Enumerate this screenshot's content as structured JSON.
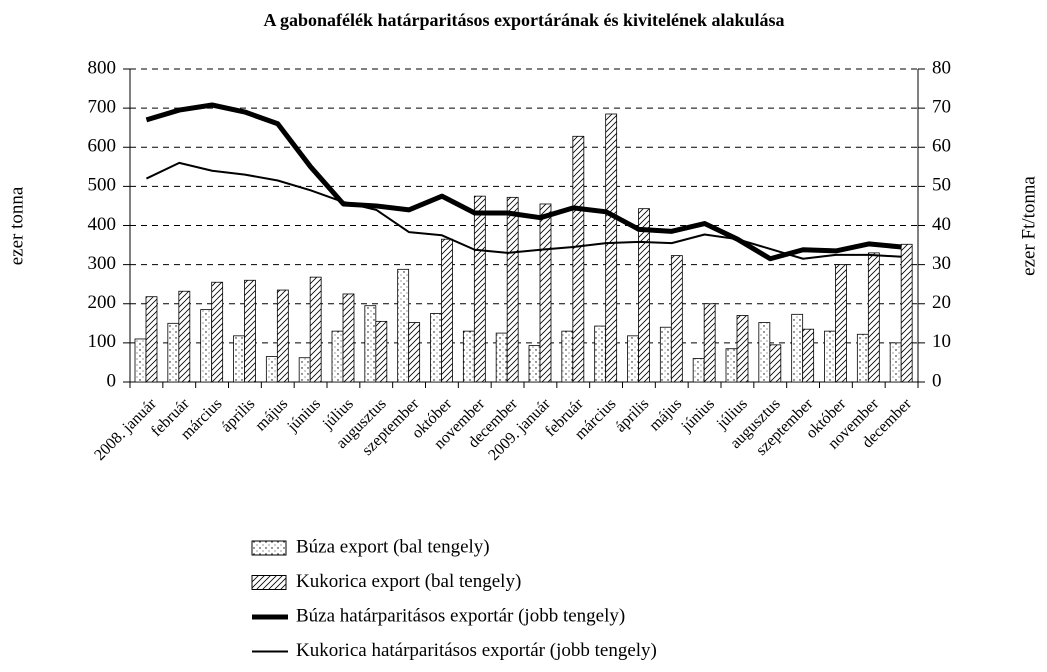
{
  "chart_data": {
    "type": "bar",
    "title": "A gabonafélék határparitásos exportárának és kivitelének alakulása",
    "ylabel": "ezer tonna",
    "y2label": "ezer Ft/tonna",
    "categories": [
      "2008. január",
      "február",
      "március",
      "április",
      "május",
      "június",
      "július",
      "augusztus",
      "szeptember",
      "október",
      "november",
      "december",
      "2009. január",
      "február",
      "március",
      "április",
      "május",
      "június",
      "július",
      "augusztus",
      "szeptember",
      "október",
      "november",
      "december"
    ],
    "series": [
      {
        "name": "Búza export (bal tengely)",
        "type": "bar",
        "pattern": "dots",
        "color": "#000000",
        "values": [
          110,
          150,
          185,
          118,
          65,
          62,
          130,
          195,
          288,
          175,
          130,
          125,
          93,
          130,
          143,
          118,
          140,
          60,
          85,
          152,
          173,
          130,
          122,
          100
        ]
      },
      {
        "name": "Kukorica export (bal tengely)",
        "type": "bar",
        "pattern": "hatch",
        "color": "#000000",
        "values": [
          218,
          232,
          255,
          260,
          235,
          268,
          225,
          155,
          152,
          365,
          475,
          472,
          455,
          628,
          685,
          443,
          323,
          200,
          170,
          95,
          135,
          300,
          330,
          352
        ]
      },
      {
        "name": "Búza határparitásos exportár (jobb tengely)",
        "type": "line",
        "axis": "y2",
        "width": 5,
        "color": "#000000",
        "values": [
          67,
          69.5,
          70.8,
          69,
          66,
          55,
          45.5,
          45,
          44,
          47.5,
          43.2,
          43.2,
          42,
          44.5,
          43.5,
          39,
          38.5,
          40.5,
          36.5,
          31.5,
          33.8,
          33.5,
          35.3,
          34.5
        ]
      },
      {
        "name": "Kukorica határparitásos exportár (jobb tengely)",
        "type": "line",
        "axis": "y2",
        "width": 2,
        "color": "#000000",
        "values": [
          52,
          56,
          54,
          53,
          51.5,
          49,
          46,
          44,
          38.3,
          37.5,
          33.8,
          33,
          33.8,
          34.5,
          35.5,
          35.8,
          35.5,
          37.7,
          36.5,
          34,
          31.5,
          32.5,
          32.5,
          32
        ]
      }
    ],
    "ylim": [
      0,
      800
    ],
    "yticks": [
      0,
      100,
      200,
      300,
      400,
      500,
      600,
      700,
      800
    ],
    "y2lim": [
      0,
      80
    ],
    "y2ticks": [
      0,
      10,
      20,
      30,
      40,
      50,
      60,
      70,
      80
    ],
    "grid": true,
    "legend": "bottom"
  }
}
